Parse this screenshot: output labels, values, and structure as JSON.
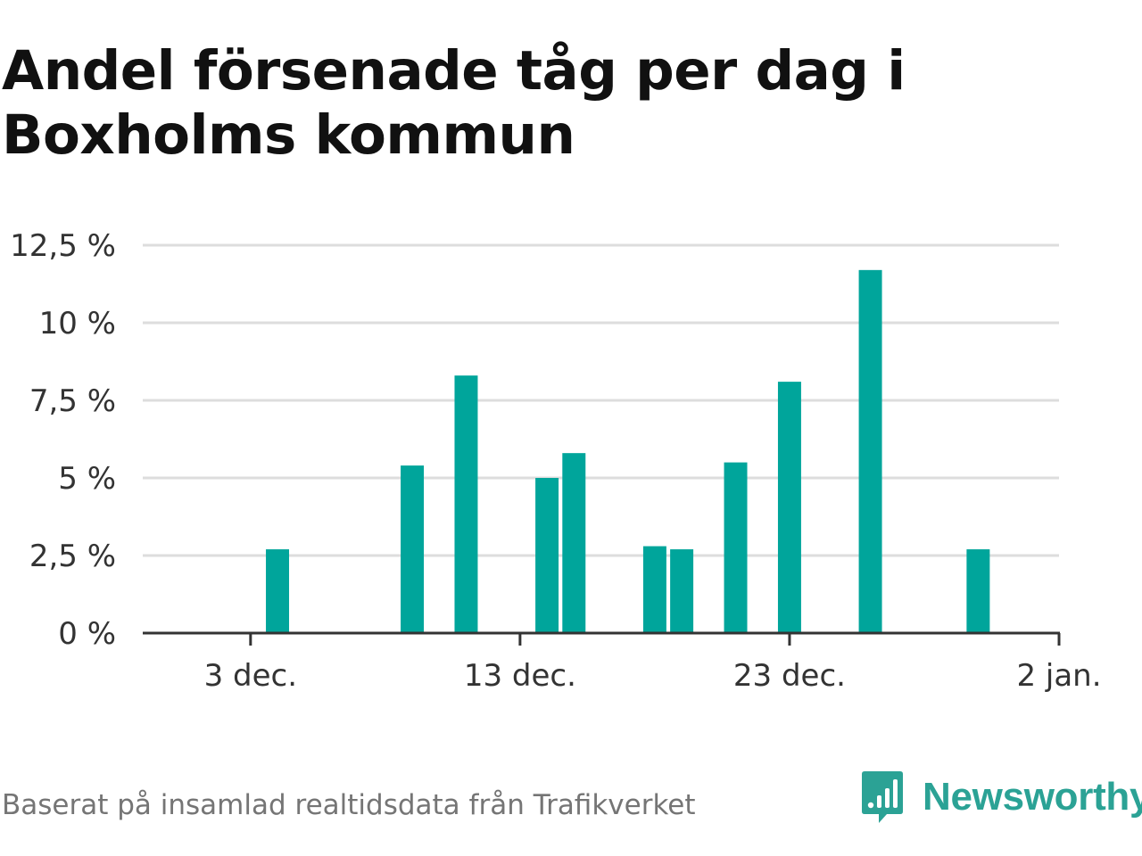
{
  "colors": {
    "bar": "#00a59b",
    "grid": "#dddddd",
    "axis": "#333333",
    "brand": "#2ba295"
  },
  "chart_data": {
    "type": "bar",
    "title": "Andel försenade tåg per dag i Boxholms kommun",
    "xlabel": "",
    "ylabel": "",
    "ylim": [
      0,
      12.5
    ],
    "xlim": [
      "2023-11-29",
      "2024-01-02"
    ],
    "yticks": [
      0,
      2.5,
      5,
      7.5,
      10,
      12.5
    ],
    "ytick_labels": [
      "0 %",
      "2,5 %",
      "5 %",
      "7,5 %",
      "10 %",
      "12,5 %"
    ],
    "xticks": [
      "2023-12-03",
      "2023-12-13",
      "2023-12-23",
      "2024-01-02"
    ],
    "xtick_labels": [
      "3 dec.",
      "13 dec.",
      "23 dec.",
      "2 jan."
    ],
    "grid": true,
    "x": [
      "2023-12-04",
      "2023-12-09",
      "2023-12-11",
      "2023-12-14",
      "2023-12-15",
      "2023-12-18",
      "2023-12-19",
      "2023-12-21",
      "2023-12-23",
      "2023-12-26",
      "2023-12-30"
    ],
    "values": [
      2.7,
      5.4,
      8.3,
      5.0,
      5.8,
      2.8,
      2.7,
      5.5,
      8.1,
      11.7,
      2.7
    ]
  },
  "footer": {
    "source": "Baserat på insamlad realtidsdata från Trafikverket",
    "brand": "Newsworthy",
    "brand_icon": "newsworthy-logo-icon"
  }
}
